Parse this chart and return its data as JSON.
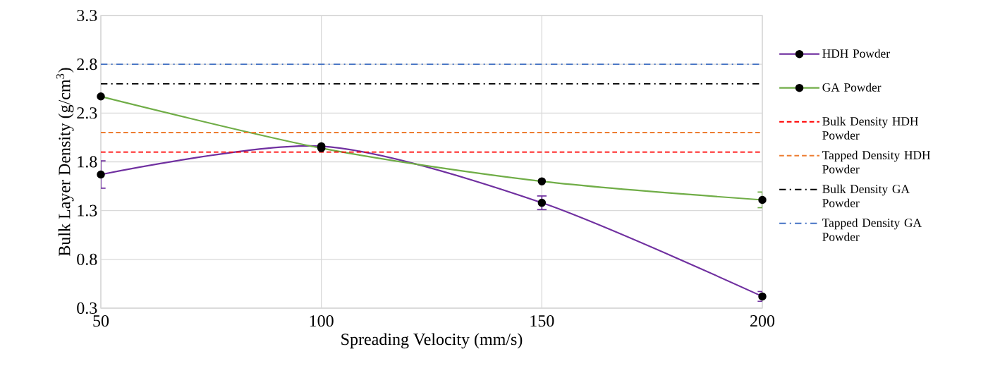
{
  "chart_data": {
    "type": "line",
    "xlabel": "Spreading Velocity  (mm/s)",
    "ylabel": "Bulk Layer Density (g/cm$^{3}$)",
    "x": [
      50,
      100,
      150,
      200
    ],
    "series": [
      {
        "name": "HDH Powder",
        "color": "#7030a0",
        "values": [
          1.67,
          1.96,
          1.38,
          0.42
        ],
        "errors": [
          0.14,
          null,
          0.07,
          0.05
        ]
      },
      {
        "name": "GA Powder",
        "color": "#70ad47",
        "values": [
          2.47,
          1.94,
          1.6,
          1.41
        ],
        "errors": [
          null,
          null,
          null,
          0.08
        ]
      }
    ],
    "ref_lines": [
      {
        "axis": "y",
        "value": 1.9,
        "label": "Bulk Density HDH Powder",
        "color": "#ff0000",
        "line_style": "dashed"
      },
      {
        "axis": "y",
        "value": 2.1,
        "label": "Tapped Density HDH Powder",
        "color": "#ed7d31",
        "line_style": "dashed"
      },
      {
        "axis": "y",
        "value": 2.6,
        "label": "Bulk Density GA Powder",
        "color": "#000000",
        "line_style": "dashdot"
      },
      {
        "axis": "y",
        "value": 2.8,
        "label": "Tapped Density GA Powder",
        "color": "#4472c4",
        "line_style": "dashdot"
      }
    ],
    "xlim": [
      50,
      200
    ],
    "xticks": [
      50,
      100,
      150,
      200
    ],
    "ylim": [
      0.3,
      3.3
    ],
    "yticks": [
      0.3,
      0.8,
      1.3,
      1.8,
      2.3,
      2.8,
      3.3
    ],
    "grid": true,
    "legend": "right",
    "marker": "circle",
    "line_style": "solid"
  }
}
